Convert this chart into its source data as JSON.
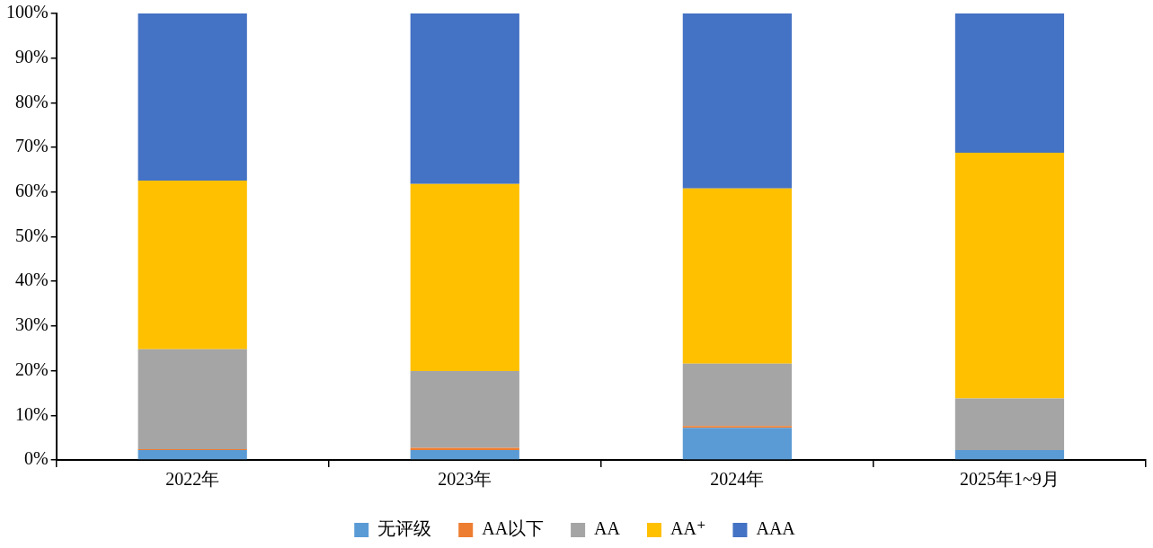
{
  "chart_data": {
    "type": "bar",
    "stacked": true,
    "categories": [
      "2022年",
      "2023年",
      "2024年",
      "2025年1~9月"
    ],
    "series": [
      {
        "name": "无评级",
        "color": "#5b9bd5",
        "values": [
          2.2,
          2.2,
          7.2,
          2.2
        ]
      },
      {
        "name": "AA以下",
        "color": "#ed7d31",
        "values": [
          0.2,
          0.5,
          0.4,
          0
        ]
      },
      {
        "name": "AA",
        "color": "#a5a5a5",
        "values": [
          22.4,
          17.2,
          14.0,
          11.6
        ]
      },
      {
        "name": "AA⁺",
        "color": "#ffc000",
        "values": [
          37.8,
          41.9,
          39.2,
          55.0
        ]
      },
      {
        "name": "AAA",
        "color": "#4472c4",
        "values": [
          37.4,
          38.2,
          39.2,
          31.2
        ]
      }
    ],
    "ylim": [
      0,
      100
    ],
    "yticks": [
      {
        "value": 0,
        "label": "0%"
      },
      {
        "value": 10,
        "label": "10%"
      },
      {
        "value": 20,
        "label": "20%"
      },
      {
        "value": 30,
        "label": "30%"
      },
      {
        "value": 40,
        "label": "40%"
      },
      {
        "value": 50,
        "label": "50%"
      },
      {
        "value": 60,
        "label": "60%"
      },
      {
        "value": 70,
        "label": "70%"
      },
      {
        "value": 80,
        "label": "80%"
      },
      {
        "value": 90,
        "label": "90%"
      },
      {
        "value": 100,
        "label": "100%"
      }
    ],
    "grid": false,
    "legend": "bottom"
  }
}
